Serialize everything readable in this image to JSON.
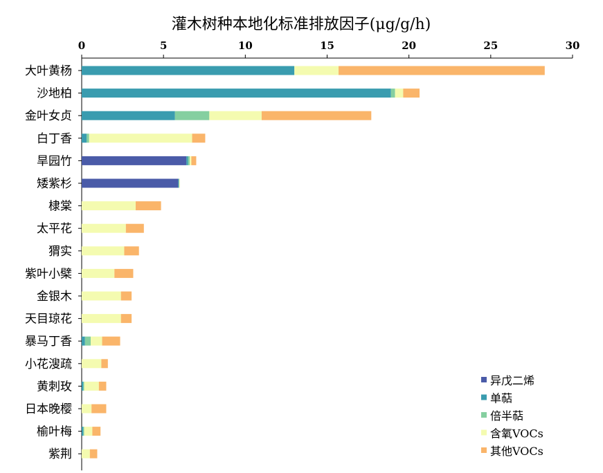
{
  "chart_data": {
    "type": "bar",
    "orientation": "horizontal",
    "stacked": true,
    "title": "灌木树种本地化标准排放因子(μg/g/h)",
    "xlabel": "",
    "ylabel": "",
    "xlim": [
      0,
      30
    ],
    "xticks": [
      "0",
      "5",
      "10",
      "15",
      "20",
      "25",
      "30"
    ],
    "xaxis_position": "top",
    "grid": false,
    "legend_position": "bottom-right",
    "categories": [
      "大叶黄杨",
      "沙地柏",
      "金叶女贞",
      "白丁香",
      "旱园竹",
      "矮紫杉",
      "棣棠",
      "太平花",
      "猬实",
      "紫叶小檗",
      "金银木",
      "天目琼花",
      "暴马丁香",
      "小花溲疏",
      "黄刺玫",
      "日本晚樱",
      "榆叶梅",
      "紫荆"
    ],
    "series": [
      {
        "name": "异戊二烯",
        "color": "#4a5ba8",
        "values": [
          0,
          0,
          0,
          0,
          6.4,
          5.9,
          0,
          0,
          0,
          0,
          0,
          0,
          0,
          0,
          0,
          0,
          0,
          0
        ]
      },
      {
        "name": "单萜",
        "color": "#3a9caf",
        "values": [
          13.0,
          18.9,
          5.7,
          0.3,
          0.1,
          0.05,
          0,
          0,
          0,
          0,
          0,
          0,
          0.2,
          0,
          0.1,
          0,
          0.1,
          0
        ]
      },
      {
        "name": "倍半萜",
        "color": "#85cfa0",
        "values": [
          0,
          0.25,
          2.1,
          0.15,
          0.1,
          0,
          0,
          0,
          0,
          0,
          0,
          0,
          0.35,
          0,
          0.05,
          0,
          0.05,
          0
        ]
      },
      {
        "name": "含氧VOCs",
        "color": "#f4fbb0",
        "values": [
          2.7,
          0.5,
          3.2,
          6.3,
          0.1,
          0.05,
          3.3,
          2.7,
          2.6,
          2.0,
          2.4,
          2.4,
          0.7,
          1.2,
          0.9,
          0.6,
          0.5,
          0.5
        ]
      },
      {
        "name": "其他VOCs",
        "color": "#fab56a",
        "values": [
          12.6,
          1.0,
          6.7,
          0.8,
          0.3,
          0,
          1.55,
          1.1,
          0.9,
          1.15,
          0.65,
          0.65,
          1.1,
          0.4,
          0.45,
          0.9,
          0.5,
          0.45
        ]
      }
    ]
  }
}
